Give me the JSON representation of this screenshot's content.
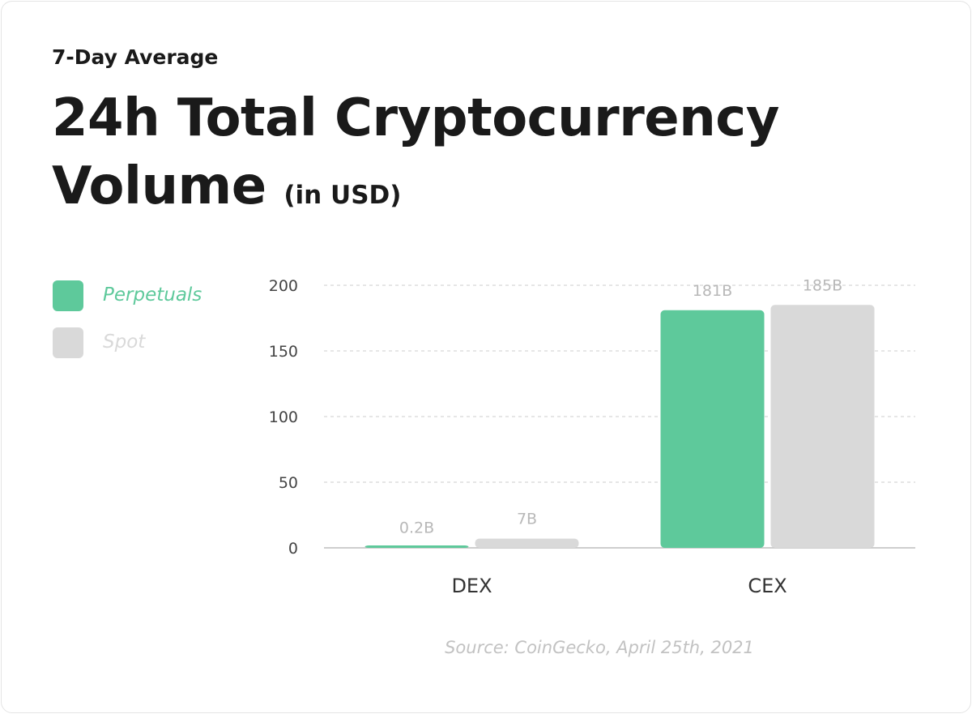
{
  "colors": {
    "perpetuals": "#5ec99b",
    "spot": "#d9d9d9",
    "grid": "#cccccc",
    "text": "#1a1a1a"
  },
  "header": {
    "subtitle": "7-Day Average",
    "title": "24h Total Cryptocurrency Volume",
    "unit": "(in USD)"
  },
  "legend": [
    {
      "label": "Perpetuals",
      "color": "#5ec99b"
    },
    {
      "label": "Spot",
      "color": "#d9d9d9"
    }
  ],
  "chart_data": {
    "type": "bar",
    "title": "24h Total Cryptocurrency Volume (in USD)",
    "subtitle": "7-Day Average",
    "categories": [
      "DEX",
      "CEX"
    ],
    "series": [
      {
        "name": "Perpetuals",
        "values": [
          0.2,
          181
        ],
        "labels": [
          "0.2B",
          "181B"
        ],
        "color": "#5ec99b"
      },
      {
        "name": "Spot",
        "values": [
          7,
          185
        ],
        "labels": [
          "7B",
          "185B"
        ],
        "color": "#d9d9d9"
      }
    ],
    "yticks": [
      0,
      50,
      100,
      150,
      200
    ],
    "ylim": [
      0,
      200
    ],
    "grid": true,
    "legend_position": "left"
  },
  "source": "Source: CoinGecko, April 25th, 2021"
}
